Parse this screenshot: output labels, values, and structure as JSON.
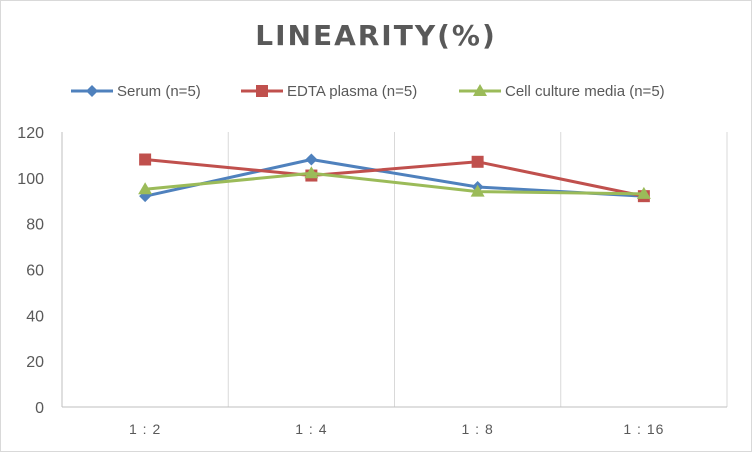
{
  "chart_data": {
    "type": "line",
    "title": "LINEARITY(%)",
    "xlabel": "",
    "ylabel": "",
    "categories": [
      "1:2",
      "1:4",
      "1:8",
      "1:16"
    ],
    "ylim": [
      0,
      120
    ],
    "yticks": [
      0,
      20,
      40,
      60,
      80,
      100,
      120
    ],
    "grid": "vertical",
    "legend_position": "top",
    "series": [
      {
        "name": "Serum (n=5)",
        "values": [
          92,
          108,
          96,
          92
        ],
        "color": "#4f81bd",
        "marker": "diamond"
      },
      {
        "name": "EDTA plasma (n=5)",
        "values": [
          108,
          101,
          107,
          92
        ],
        "color": "#c0504d",
        "marker": "square"
      },
      {
        "name": "Cell culture media (n=5)",
        "values": [
          95,
          102,
          94,
          93
        ],
        "color": "#9bbb59",
        "marker": "triangle"
      }
    ]
  }
}
